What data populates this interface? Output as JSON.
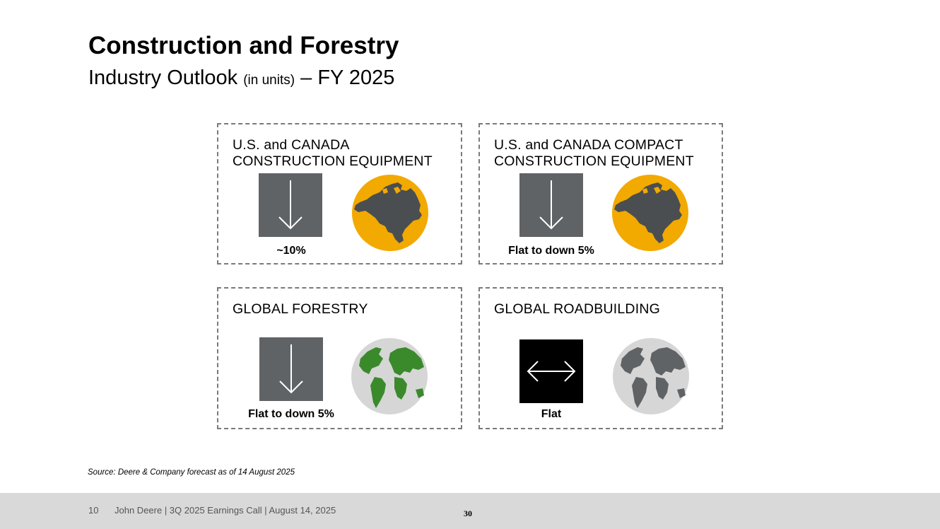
{
  "header": {
    "title": "Construction and Forestry",
    "subtitle_main": "Industry Outlook",
    "subtitle_units": "(in units)",
    "subtitle_tail": "– FY 2025"
  },
  "cards": [
    {
      "title_line1": "U.S. and CANADA",
      "title_line2": "CONSTRUCTION EQUIPMENT",
      "value": "~10%",
      "arrow": "down-arrow-icon",
      "globe": "north-america-globe-icon",
      "globe_color": "#f2a900"
    },
    {
      "title_line1": "U.S. and CANADA COMPACT",
      "title_line2": "CONSTRUCTION EQUIPMENT",
      "value": "Flat to down 5%",
      "arrow": "down-arrow-icon",
      "globe": "north-america-globe-icon",
      "globe_color": "#f2a900"
    },
    {
      "title_line1": "GLOBAL FORESTRY",
      "title_line2": "",
      "value": "Flat to down 5%",
      "arrow": "down-arrow-icon",
      "globe": "world-globe-icon",
      "globe_color": "#3a8a2c"
    },
    {
      "title_line1": "GLOBAL ROADBUILDING",
      "title_line2": "",
      "value": "Flat",
      "arrow": "horizontal-double-arrow-icon",
      "globe": "world-globe-icon",
      "globe_color": "#5f6366"
    }
  ],
  "source": "Source: Deere & Company forecast as of 14 August 2025",
  "footer": {
    "page": "10",
    "text": "John Deere | 3Q 2025 Earnings Call | August 14, 2025",
    "slide_number": "30"
  }
}
